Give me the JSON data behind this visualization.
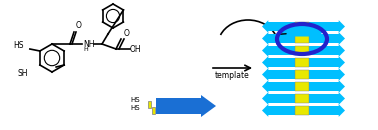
{
  "bg_color": "#ffffff",
  "arrow_color": "#1a6fd4",
  "yellow_color": "#e8e800",
  "dark_arrow_color": "#2222cc",
  "text_template": "template",
  "text_hs1": "HS",
  "text_hs2": "HS",
  "text_hs3": "HS",
  "text_hs4": "SH",
  "text_o1": "O",
  "text_o2": "O",
  "text_oh": "OH",
  "text_nh": "NH",
  "text_h": "H",
  "cyan_color": "#00bfff",
  "fig_width": 3.78,
  "fig_height": 1.3,
  "dpi": 100
}
